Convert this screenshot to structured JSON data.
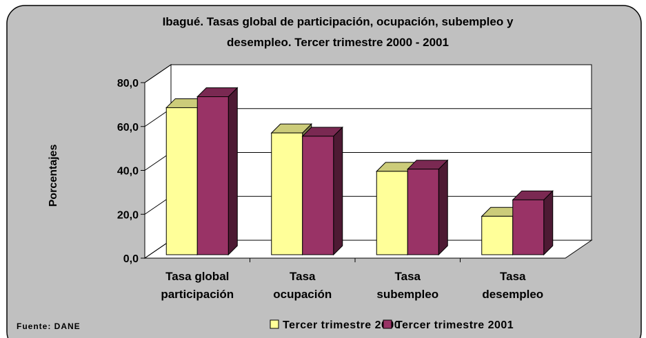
{
  "chart_data": {
    "type": "bar3d",
    "title": [
      "Ibagué. Tasas global de participación, ocupación, subempleo y",
      "desempleo. Tercer trimestre 2000 - 2001"
    ],
    "y_label": "Porcentajes",
    "source": "Fuente: DANE",
    "categories": [
      "Tasa global participación",
      "Tasa ocupación",
      "Tasa subempleo",
      "Tasa desempleo"
    ],
    "series": [
      {
        "name": "Tercer trimestre 2000",
        "color": "#ffff99",
        "values": [
          67.0,
          55.5,
          38.0,
          17.5
        ]
      },
      {
        "name": "Tercer trimestre 2001",
        "color": "#993366",
        "values": [
          72.0,
          54.0,
          39.0,
          25.0
        ]
      }
    ],
    "ylim": [
      0,
      80
    ],
    "yticks": [
      {
        "value": 0,
        "label": "0,0"
      },
      {
        "value": 20,
        "label": "20,0"
      },
      {
        "value": 40,
        "label": "40,0"
      },
      {
        "value": 60,
        "label": "60,0"
      },
      {
        "value": 80,
        "label": "80,0"
      }
    ],
    "grid": true
  }
}
